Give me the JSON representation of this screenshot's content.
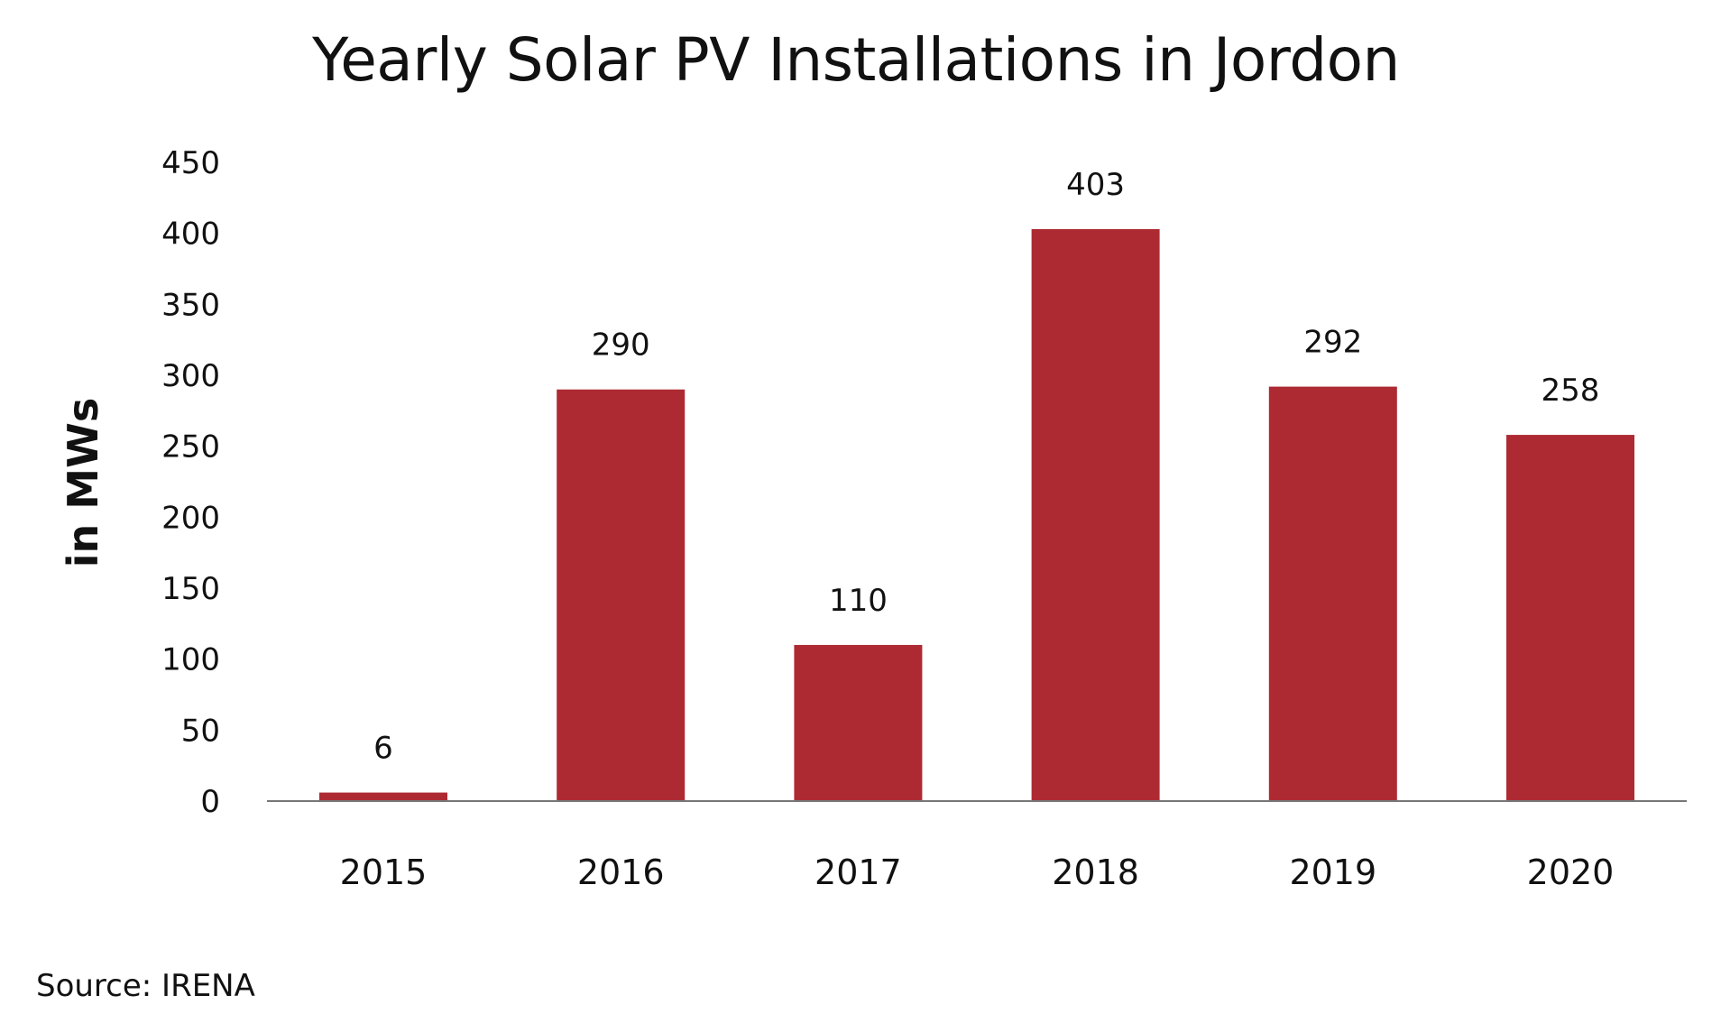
{
  "chart_data": {
    "type": "bar",
    "title": "Yearly Solar PV Installations in Jordon",
    "xlabel": "",
    "ylabel": "in MWs",
    "categories": [
      "2015",
      "2016",
      "2017",
      "2018",
      "2019",
      "2020"
    ],
    "values": [
      6,
      290,
      110,
      403,
      292,
      258
    ],
    "data_labels": [
      "6",
      "290",
      "110",
      "403",
      "292",
      "258"
    ],
    "ylim": [
      0,
      450
    ],
    "yticks": [
      0,
      50,
      100,
      150,
      200,
      250,
      300,
      350,
      400,
      450
    ],
    "ytick_labels": [
      "0",
      "50",
      "100",
      "150",
      "200",
      "250",
      "300",
      "350",
      "400",
      "450"
    ],
    "grid": false,
    "legend": "none",
    "bar_color": "#AD2A33",
    "axis_color": "#777777",
    "source": "Source: IRENA"
  }
}
